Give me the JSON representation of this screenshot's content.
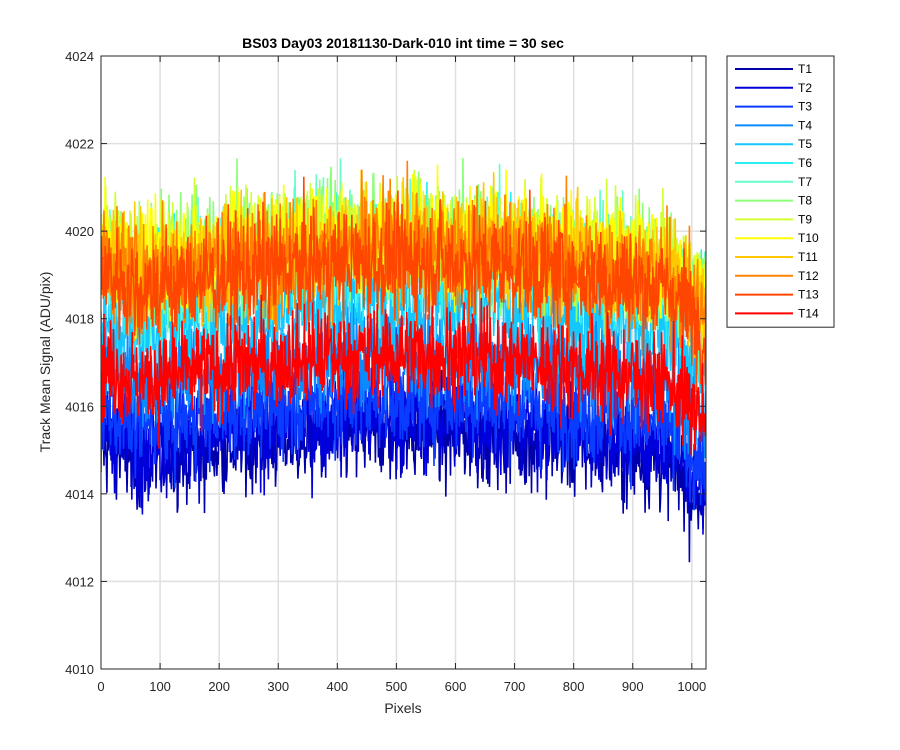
{
  "chart_data": {
    "type": "line",
    "title": "BS03 Day03 20181130-Dark-010 int time = 30 sec",
    "xlabel": "Pixels",
    "ylabel": "Track Mean Signal (ADU/pix)",
    "xlim": [
      0,
      1024
    ],
    "ylim": [
      4010,
      4024
    ],
    "xticks": [
      0,
      100,
      200,
      300,
      400,
      500,
      600,
      700,
      800,
      900,
      1000
    ],
    "yticks": [
      4010,
      4012,
      4014,
      4016,
      4018,
      4020,
      4022,
      4024
    ],
    "grid": true,
    "legend_position": "outside-top-right",
    "n_points": 1024,
    "series": [
      {
        "name": "T1",
        "color": "#0000aa",
        "mean": 4015.0,
        "noise": 0.8
      },
      {
        "name": "T2",
        "color": "#0000dd",
        "mean": 4015.3,
        "noise": 0.8
      },
      {
        "name": "T3",
        "color": "#0a3cff",
        "mean": 4015.8,
        "noise": 0.8
      },
      {
        "name": "T4",
        "color": "#0a8cff",
        "mean": 4016.8,
        "noise": 0.8
      },
      {
        "name": "T5",
        "color": "#14c8ff",
        "mean": 4018.0,
        "noise": 0.9
      },
      {
        "name": "T6",
        "color": "#28f0f0",
        "mean": 4019.0,
        "noise": 0.9
      },
      {
        "name": "T7",
        "color": "#64ffc8",
        "mean": 4019.3,
        "noise": 0.9
      },
      {
        "name": "T8",
        "color": "#8cff78",
        "mean": 4019.5,
        "noise": 0.9
      },
      {
        "name": "T9",
        "color": "#d2ff32",
        "mean": 4019.5,
        "noise": 0.9
      },
      {
        "name": "T10",
        "color": "#ffff00",
        "mean": 4019.5,
        "noise": 0.9
      },
      {
        "name": "T11",
        "color": "#ffc800",
        "mean": 4019.3,
        "noise": 0.9
      },
      {
        "name": "T12",
        "color": "#ff8200",
        "mean": 4019.2,
        "noise": 0.9
      },
      {
        "name": "T13",
        "color": "#ff4600",
        "mean": 4018.9,
        "noise": 0.9
      },
      {
        "name": "T14",
        "color": "#ff0000",
        "mean": 4016.8,
        "noise": 0.8
      }
    ]
  }
}
